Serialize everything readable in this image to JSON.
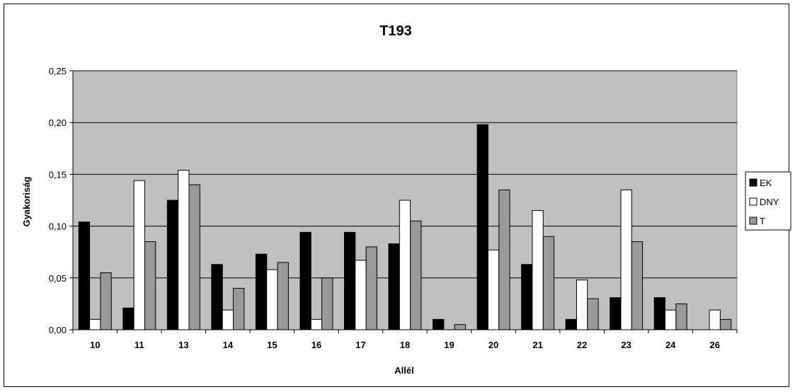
{
  "chart_data": {
    "type": "bar",
    "title": "T193",
    "xlabel": "Allél",
    "ylabel": "Gyakoriság",
    "ylim": [
      0,
      0.25
    ],
    "yticks": [
      "0,00",
      "0,05",
      "0,10",
      "0,15",
      "0,20",
      "0,25"
    ],
    "grid": true,
    "legend_position": "right",
    "plot_background": "#c0c0c0",
    "categories": [
      "10",
      "11",
      "13",
      "14",
      "15",
      "16",
      "17",
      "18",
      "19",
      "20",
      "21",
      "22",
      "23",
      "24",
      "26"
    ],
    "series": [
      {
        "name": "EK",
        "color": "#000000",
        "values": [
          0.104,
          0.021,
          0.125,
          0.063,
          0.073,
          0.094,
          0.094,
          0.083,
          0.01,
          0.198,
          0.063,
          0.01,
          0.031,
          0.031,
          0.0
        ]
      },
      {
        "name": "DNY",
        "color": "#ffffff",
        "values": [
          0.01,
          0.144,
          0.154,
          0.019,
          0.058,
          0.01,
          0.067,
          0.125,
          0.0,
          0.077,
          0.115,
          0.048,
          0.135,
          0.019,
          0.019
        ]
      },
      {
        "name": "T",
        "color": "#999999",
        "values": [
          0.055,
          0.085,
          0.14,
          0.04,
          0.065,
          0.05,
          0.08,
          0.105,
          0.005,
          0.135,
          0.09,
          0.03,
          0.085,
          0.025,
          0.01
        ]
      }
    ]
  }
}
